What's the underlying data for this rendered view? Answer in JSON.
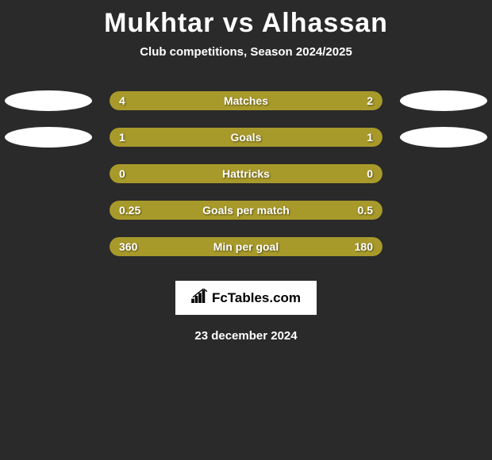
{
  "title": "Mukhtar vs Alhassan",
  "subtitle": "Club competitions, Season 2024/2025",
  "colors": {
    "background": "#2a2a2a",
    "left_bar": "#a89a2a",
    "right_bar": "#a89a2a",
    "ellipse": "#ffffff",
    "text": "#ffffff"
  },
  "bar_styling": {
    "container_width": 344,
    "container_height": 24,
    "border_radius": 12,
    "value_fontsize": 14,
    "label_fontsize": 14
  },
  "stats": [
    {
      "label": "Matches",
      "left_value": "4",
      "right_value": "2",
      "left_pct": 66.67,
      "right_pct": 33.33,
      "show_left_ellipse": true,
      "show_right_ellipse": true
    },
    {
      "label": "Goals",
      "left_value": "1",
      "right_value": "1",
      "left_pct": 50,
      "right_pct": 50,
      "show_left_ellipse": true,
      "show_right_ellipse": true
    },
    {
      "label": "Hattricks",
      "left_value": "0",
      "right_value": "0",
      "left_pct": 50,
      "right_pct": 50,
      "show_left_ellipse": false,
      "show_right_ellipse": false
    },
    {
      "label": "Goals per match",
      "left_value": "0.25",
      "right_value": "0.5",
      "left_pct": 33.33,
      "right_pct": 66.67,
      "show_left_ellipse": false,
      "show_right_ellipse": false
    },
    {
      "label": "Min per goal",
      "left_value": "360",
      "right_value": "180",
      "left_pct": 33.33,
      "right_pct": 66.67,
      "show_left_ellipse": false,
      "show_right_ellipse": false
    }
  ],
  "footer": {
    "logo_text": "FcTables.com",
    "date": "23 december 2024"
  }
}
